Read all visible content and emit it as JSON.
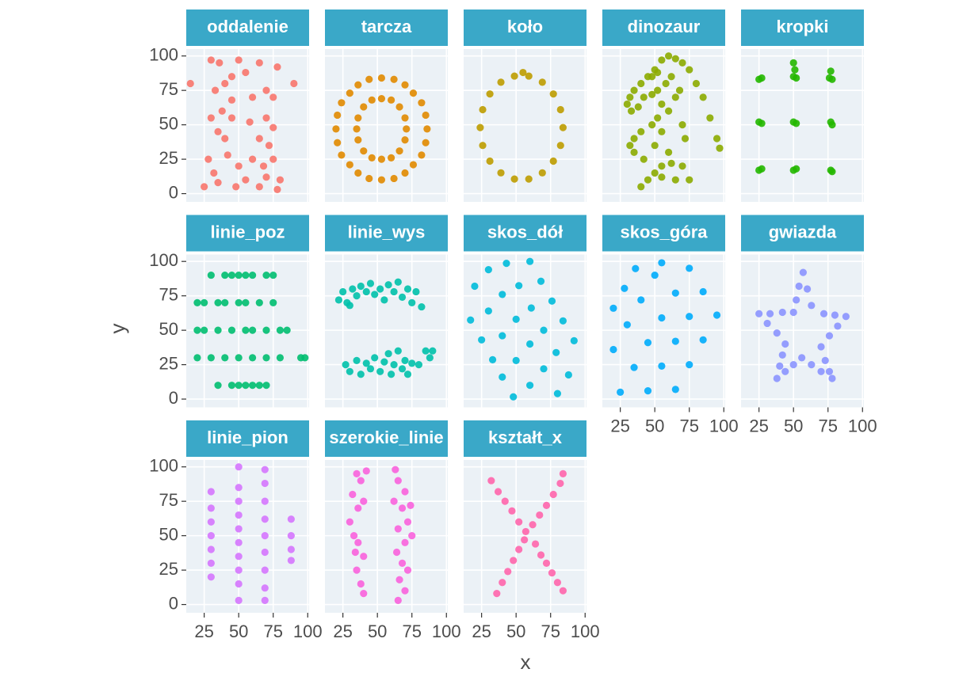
{
  "chart_data": {
    "type": "scatter",
    "xlabel": "x",
    "ylabel": "y",
    "xlim": [
      12,
      101
    ],
    "ylim": [
      -6,
      105
    ],
    "xticks": [
      25,
      50,
      75,
      100
    ],
    "yticks": [
      0,
      25,
      50,
      75,
      100
    ],
    "grid": true,
    "panels": [
      {
        "name": "oddalenie",
        "color": "#F8766D",
        "x": [
          15,
          30,
          36,
          45,
          50,
          55,
          65,
          78,
          90,
          33,
          40,
          60,
          70,
          75,
          38,
          45,
          30,
          70,
          75,
          35,
          40,
          65,
          72,
          28,
          42,
          50,
          60,
          68,
          75,
          25,
          35,
          48,
          55,
          65,
          78,
          80,
          32,
          70,
          45,
          58
        ],
        "y": [
          80,
          97,
          95,
          85,
          97,
          88,
          95,
          92,
          80,
          75,
          80,
          70,
          75,
          70,
          60,
          55,
          55,
          55,
          48,
          45,
          40,
          40,
          35,
          25,
          28,
          20,
          25,
          20,
          25,
          5,
          8,
          5,
          10,
          5,
          3,
          10,
          15,
          12,
          68,
          52
        ]
      },
      {
        "name": "tarcza",
        "color": "#E18A00",
        "x": [
          86,
          82,
          70,
          53,
          36,
          24,
          20,
          24,
          36,
          53,
          70,
          82,
          85,
          76,
          62,
          44,
          30,
          21,
          21,
          30,
          44,
          62,
          76,
          85,
          71,
          66,
          53,
          40,
          35,
          40,
          53,
          66,
          70,
          60,
          46,
          36,
          36,
          46,
          60,
          70
        ],
        "y": [
          47,
          66,
          79,
          84,
          79,
          66,
          47,
          28,
          15,
          10,
          15,
          28,
          57,
          73,
          83,
          83,
          73,
          57,
          37,
          21,
          11,
          11,
          21,
          37,
          47,
          63,
          69,
          63,
          47,
          31,
          25,
          31,
          55,
          68,
          68,
          55,
          39,
          26,
          26,
          39
        ]
      },
      {
        "name": "koło",
        "color": "#BE9C00",
        "x": [
          84,
          82.2,
          77,
          69,
          59.2,
          48.8,
          39,
          31,
          25.8,
          24,
          25.8,
          31,
          39,
          48.8,
          59.2,
          69,
          77,
          82.2,
          55
        ],
        "y": [
          48,
          61,
          72.4,
          80.9,
          85.4,
          85.4,
          80.9,
          72.4,
          61,
          48,
          35,
          23.6,
          15.1,
          10.6,
          10.6,
          15.1,
          23.6,
          35,
          88
        ]
      },
      {
        "name": "dinozaur",
        "color": "#8CAB00",
        "x": [
          55,
          60,
          65,
          70,
          75,
          80,
          85,
          90,
          95,
          97,
          50,
          45,
          40,
          35,
          32,
          30,
          33,
          38,
          42,
          48,
          52,
          58,
          62,
          55,
          52,
          48,
          40,
          35,
          32,
          35,
          42,
          50,
          55,
          60,
          65,
          68,
          70,
          72,
          60,
          55,
          50,
          45,
          40,
          55,
          65,
          75,
          70,
          62,
          48,
          52
        ],
        "y": [
          97,
          100,
          98,
          95,
          90,
          80,
          70,
          55,
          40,
          33,
          90,
          85,
          80,
          75,
          70,
          65,
          60,
          63,
          70,
          72,
          75,
          80,
          85,
          65,
          55,
          50,
          45,
          40,
          35,
          30,
          25,
          35,
          45,
          60,
          70,
          75,
          50,
          40,
          30,
          20,
          15,
          10,
          5,
          12,
          10,
          10,
          20,
          22,
          85,
          88
        ]
      },
      {
        "name": "kropki",
        "color": "#24B700",
        "x": [
          25,
          27,
          25,
          27,
          25,
          27,
          50,
          51,
          52,
          50,
          50,
          52,
          50,
          52,
          77,
          76,
          78,
          77,
          78,
          77,
          78
        ],
        "y": [
          83,
          84,
          52,
          51,
          17,
          18,
          95,
          90,
          84,
          85,
          52,
          51,
          17,
          18,
          89,
          84,
          83,
          52,
          50,
          17,
          16
        ]
      },
      {
        "name": "linie_poz",
        "color": "#00BE70",
        "x": [
          30,
          40,
          45,
          50,
          55,
          60,
          70,
          75,
          20,
          25,
          35,
          40,
          50,
          55,
          65,
          75,
          20,
          25,
          35,
          45,
          55,
          60,
          70,
          80,
          85,
          20,
          30,
          40,
          50,
          60,
          70,
          80,
          95,
          98,
          35,
          45,
          50,
          55,
          60,
          65,
          70
        ],
        "y": [
          90,
          90,
          90,
          90,
          90,
          90,
          90,
          90,
          70,
          70,
          70,
          70,
          70,
          70,
          70,
          70,
          50,
          50,
          50,
          50,
          50,
          50,
          50,
          50,
          50,
          30,
          30,
          30,
          30,
          30,
          30,
          30,
          30,
          30,
          10,
          10,
          10,
          10,
          10,
          10,
          10
        ]
      },
      {
        "name": "linie_wys",
        "color": "#00C1AB",
        "x": [
          22,
          25,
          28,
          32,
          35,
          38,
          42,
          45,
          48,
          52,
          55,
          58,
          62,
          65,
          68,
          72,
          75,
          78,
          82,
          30,
          27,
          30,
          35,
          38,
          42,
          45,
          48,
          52,
          55,
          58,
          60,
          62,
          65,
          68,
          70,
          72,
          75,
          80,
          85,
          88,
          90
        ],
        "y": [
          72,
          78,
          70,
          80,
          75,
          82,
          78,
          84,
          76,
          80,
          72,
          83,
          78,
          85,
          74,
          80,
          70,
          78,
          67,
          68,
          25,
          20,
          28,
          18,
          26,
          22,
          30,
          20,
          27,
          33,
          18,
          25,
          35,
          22,
          28,
          18,
          26,
          25,
          35,
          30,
          35
        ]
      },
      {
        "name": "skos_dół",
        "color": "#00BBDA",
        "x": [
          60,
          68,
          76,
          84,
          92,
          43,
          52,
          61,
          70,
          79,
          88,
          30,
          40,
          50,
          60,
          70,
          80,
          20,
          30,
          40,
          50,
          60,
          17,
          25,
          33,
          40,
          48
        ],
        "y": [
          100,
          85.6,
          71.2,
          56.8,
          42.4,
          98.6,
          82.4,
          66.2,
          50,
          33.8,
          17.6,
          94,
          76,
          58,
          40,
          22,
          4,
          82,
          64,
          46,
          28,
          10,
          57.4,
          43,
          28.6,
          16,
          1.6
        ]
      },
      {
        "name": "skos_góra",
        "color": "#00ACFC",
        "x": [
          20,
          28,
          36,
          20,
          30,
          40,
          50,
          55,
          25,
          35,
          45,
          55,
          65,
          75,
          45,
          55,
          65,
          75,
          85,
          65,
          75,
          85,
          95
        ],
        "y": [
          66,
          80.4,
          94.8,
          36,
          54,
          72,
          90,
          99,
          5,
          23,
          41,
          59,
          77,
          95,
          6,
          24,
          42,
          60,
          78,
          7,
          25,
          43,
          61
        ]
      },
      {
        "name": "gwiazda",
        "color": "#8B93FF",
        "x": [
          57,
          60,
          63,
          72,
          80,
          88,
          82,
          76,
          70,
          73,
          76,
          78,
          70,
          63,
          56,
          50,
          44,
          38,
          40,
          42,
          44,
          38,
          31,
          25,
          33,
          42,
          50,
          52,
          54
        ],
        "y": [
          92,
          80,
          68,
          62,
          61,
          60,
          53,
          46,
          38,
          28,
          20,
          15,
          20,
          25,
          30,
          25,
          20,
          15,
          24,
          32,
          40,
          48,
          55,
          62,
          62,
          63,
          63,
          72,
          82
        ]
      },
      {
        "name": "linie_pion",
        "color": "#D575FE",
        "x": [
          30,
          30,
          30,
          30,
          30,
          30,
          30,
          50,
          50,
          50,
          50,
          50,
          50,
          50,
          50,
          50,
          50,
          69,
          69,
          69,
          69,
          69,
          69,
          69,
          69,
          69,
          88,
          88,
          88,
          88
        ],
        "y": [
          20,
          30,
          40,
          50,
          60,
          70,
          82,
          3,
          15,
          25,
          35,
          45,
          55,
          65,
          75,
          85,
          100,
          3,
          12,
          25,
          38,
          50,
          62,
          75,
          88,
          98,
          32,
          40,
          50,
          62
        ]
      },
      {
        "name": "szerokie_linie",
        "color": "#F962DD",
        "x": [
          35,
          38,
          32,
          36,
          30,
          33,
          36,
          40,
          35,
          38,
          40,
          42,
          40,
          34,
          63,
          65,
          70,
          62,
          68,
          72,
          65,
          75,
          70,
          64,
          68,
          72,
          66,
          70,
          65,
          74
        ],
        "y": [
          95,
          90,
          80,
          70,
          60,
          50,
          45,
          35,
          25,
          15,
          8,
          97,
          75,
          38,
          98,
          90,
          82,
          75,
          70,
          60,
          55,
          50,
          45,
          38,
          30,
          25,
          18,
          10,
          3,
          72
        ]
      },
      {
        "name": "kształt_x",
        "color": "#FF65AC",
        "x": [
          32,
          37,
          42,
          47,
          52,
          57,
          62,
          67,
          72,
          77,
          82,
          84,
          36,
          40,
          44,
          48,
          52,
          56,
          64,
          68,
          72,
          76,
          80,
          84
        ],
        "y": [
          90,
          82,
          75,
          68,
          60,
          53,
          58,
          65,
          72,
          80,
          88,
          95,
          8,
          16,
          24,
          32,
          40,
          47,
          44,
          36,
          30,
          23,
          16,
          10
        ]
      }
    ]
  }
}
